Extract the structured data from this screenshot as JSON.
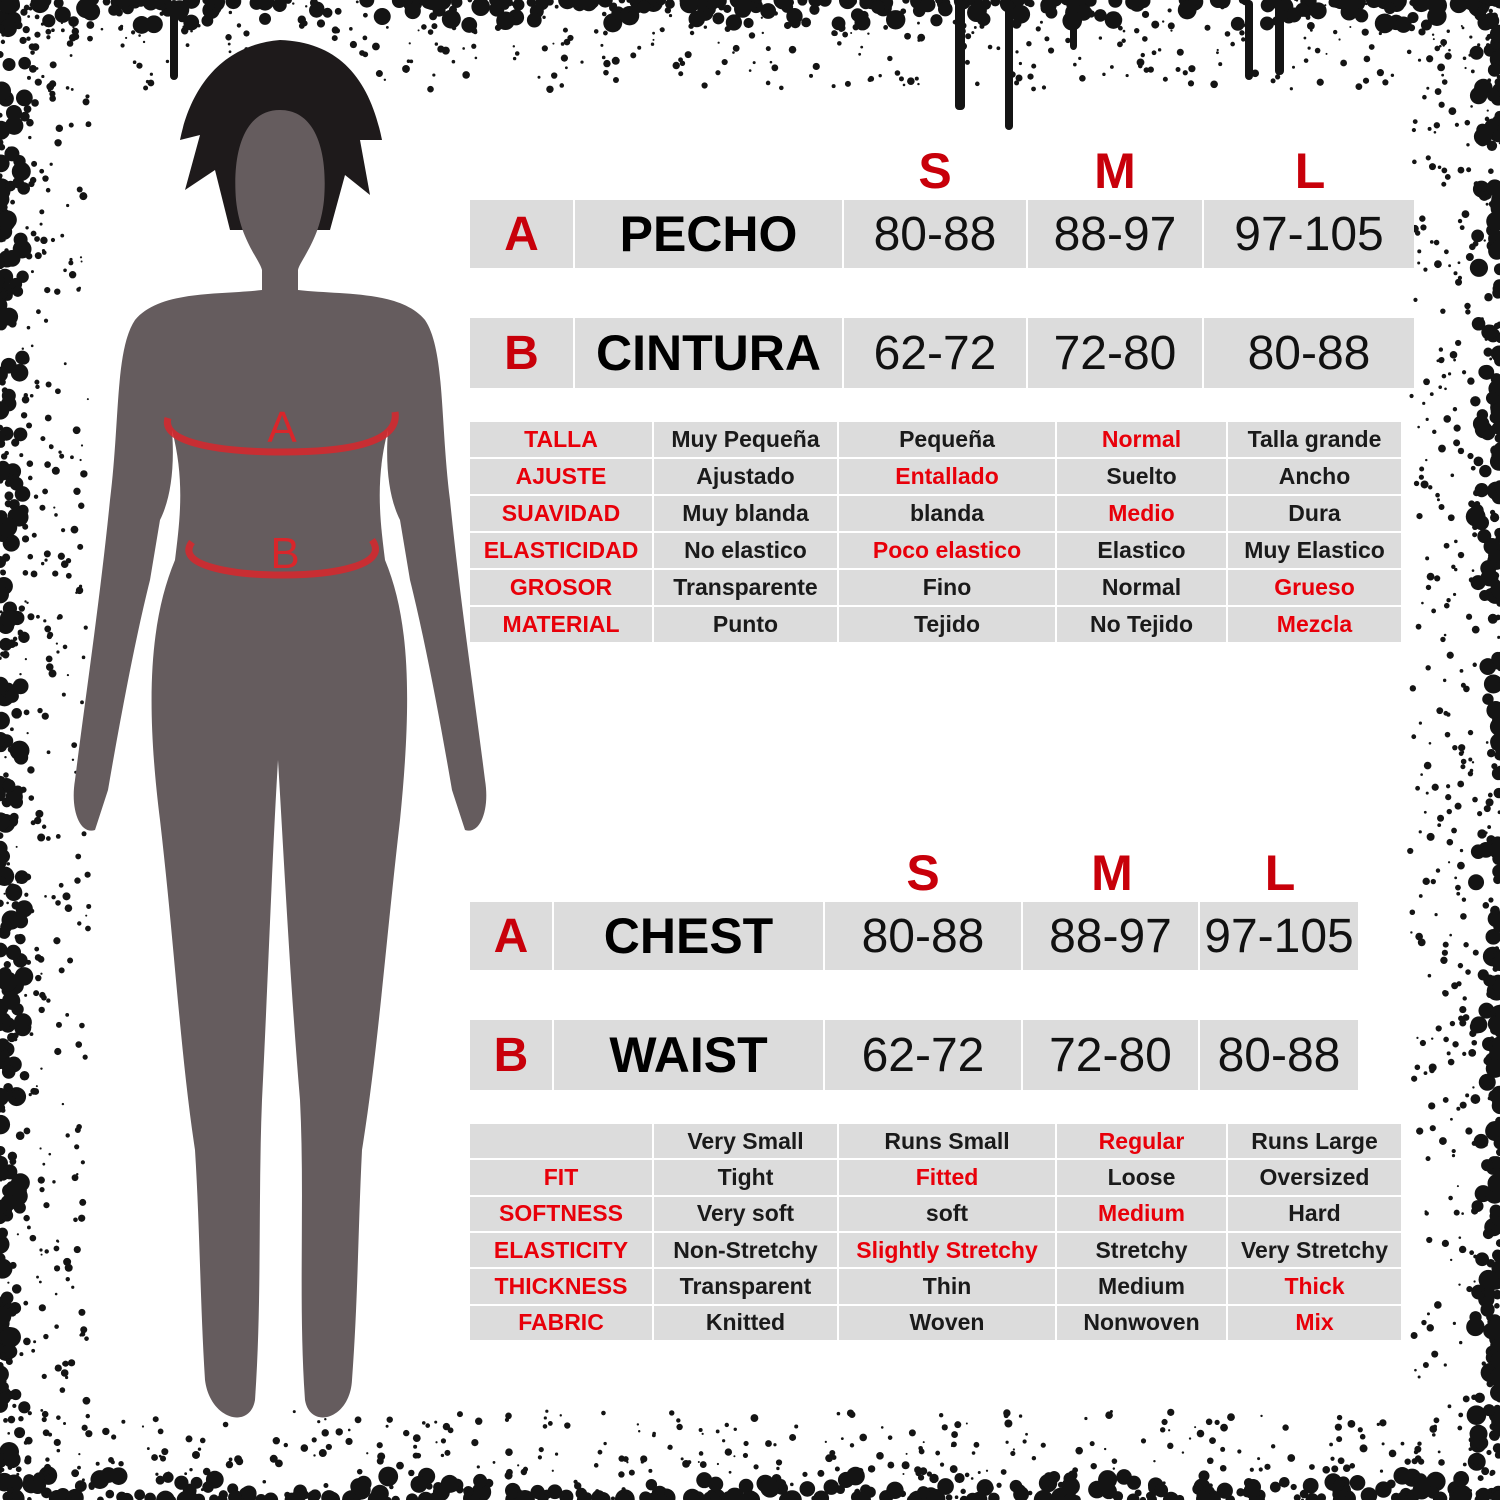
{
  "colors": {
    "accent_red": "#e8000a",
    "header_red": "#c8000a",
    "cell_bg": "#dcdcdc",
    "silhouette": "#655c5e",
    "measure_line": "#d9262b"
  },
  "figure": {
    "marker_a": "A",
    "marker_b": "B"
  },
  "spanish": {
    "sizes": [
      "S",
      "M",
      "L"
    ],
    "measurements": [
      {
        "letter": "A",
        "label": "PECHO",
        "values": [
          "80-88",
          "88-97",
          "97-105"
        ]
      },
      {
        "letter": "B",
        "label": "CINTURA",
        "values": [
          "62-72",
          "72-80",
          "80-88"
        ]
      }
    ],
    "details": [
      {
        "label": "TALLA",
        "values": [
          "Muy Pequeña",
          "Pequeña",
          "Normal",
          "Talla grande"
        ],
        "highlight": 2
      },
      {
        "label": "AJUSTE",
        "values": [
          "Ajustado",
          "Entallado",
          "Suelto",
          "Ancho"
        ],
        "highlight": 1
      },
      {
        "label": "SUAVIDAD",
        "values": [
          "Muy blanda",
          "blanda",
          "Medio",
          "Dura"
        ],
        "highlight": 2
      },
      {
        "label": "ELASTICIDAD",
        "values": [
          "No elastico",
          "Poco elastico",
          "Elastico",
          "Muy Elastico"
        ],
        "highlight": 1
      },
      {
        "label": "GROSOR",
        "values": [
          "Transparente",
          "Fino",
          "Normal",
          "Grueso"
        ],
        "highlight": 3
      },
      {
        "label": "MATERIAL",
        "values": [
          "Punto",
          "Tejido",
          "No Tejido",
          "Mezcla"
        ],
        "highlight": 3
      }
    ]
  },
  "english": {
    "sizes": [
      "S",
      "M",
      "L"
    ],
    "measurements": [
      {
        "letter": "A",
        "label": "CHEST",
        "values": [
          "80-88",
          "88-97",
          "97-105"
        ]
      },
      {
        "letter": "B",
        "label": "WAIST",
        "values": [
          "62-72",
          "72-80",
          "80-88"
        ]
      }
    ],
    "details": [
      {
        "label": "",
        "values": [
          "Very Small",
          "Runs Small",
          "Regular",
          "Runs Large"
        ],
        "highlight": 2
      },
      {
        "label": "FIT",
        "values": [
          "Tight",
          "Fitted",
          "Loose",
          "Oversized"
        ],
        "highlight": 1
      },
      {
        "label": "SOFTNESS",
        "values": [
          "Very soft",
          "soft",
          "Medium",
          "Hard"
        ],
        "highlight": 2
      },
      {
        "label": "ELASTICITY",
        "values": [
          "Non-Stretchy",
          "Slightly Stretchy",
          "Stretchy",
          "Very Stretchy"
        ],
        "highlight": 1
      },
      {
        "label": "THICKNESS",
        "values": [
          "Transparent",
          "Thin",
          "Medium",
          "Thick"
        ],
        "highlight": 3
      },
      {
        "label": "FABRIC",
        "values": [
          "Knitted",
          "Woven",
          "Nonwoven",
          "Mix"
        ],
        "highlight": 3
      }
    ]
  }
}
